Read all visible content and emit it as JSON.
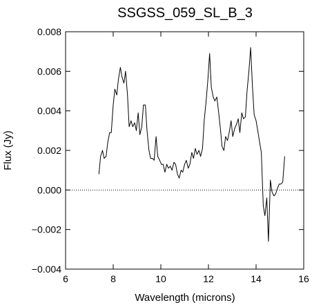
{
  "chart_data": {
    "type": "line",
    "title": "SSGSS_059_SL_B_3",
    "xlabel": "Wavelength (microns)",
    "ylabel": "Flux (Jy)",
    "xlim": [
      6,
      16
    ],
    "ylim": [
      -0.004,
      0.008
    ],
    "x_ticks": [
      6,
      8,
      10,
      12,
      14,
      16
    ],
    "x_tick_labels": [
      "6",
      "8",
      "10",
      "12",
      "14",
      "16"
    ],
    "y_ticks": [
      -0.004,
      -0.002,
      0.0,
      0.002,
      0.004,
      0.006,
      0.008
    ],
    "y_tick_labels": [
      "−0.004",
      "−0.002",
      "0.000",
      "0.002",
      "0.004",
      "0.006",
      "0.008"
    ],
    "reference_line": {
      "y": 0.0,
      "style": "dotted"
    },
    "grid": false,
    "legend": "none",
    "line_color": "#000000",
    "series": [
      {
        "x": [
          7.4,
          7.47,
          7.55,
          7.62,
          7.7,
          7.77,
          7.85,
          7.92,
          8.0,
          8.07,
          8.15,
          8.22,
          8.3,
          8.37,
          8.45,
          8.52,
          8.6,
          8.67,
          8.75,
          8.82,
          8.9,
          8.97,
          9.05,
          9.12,
          9.2,
          9.27,
          9.35,
          9.42,
          9.5,
          9.57,
          9.65,
          9.72,
          9.8,
          9.87,
          9.95,
          10.02,
          10.1,
          10.17,
          10.25,
          10.32,
          10.4,
          10.47,
          10.55,
          10.62,
          10.7,
          10.77,
          10.85,
          10.92,
          11.0,
          11.07,
          11.15,
          11.22,
          11.3,
          11.37,
          11.45,
          11.52,
          11.6,
          11.67,
          11.75,
          11.82,
          11.9,
          11.97,
          12.05,
          12.12,
          12.2,
          12.27,
          12.35,
          12.42,
          12.5,
          12.57,
          12.65,
          12.72,
          12.8,
          12.87,
          12.95,
          13.02,
          13.1,
          13.17,
          13.25,
          13.32,
          13.4,
          13.47,
          13.55,
          13.62,
          13.7,
          13.77,
          13.85,
          13.92,
          14.0,
          14.07,
          14.15,
          14.22,
          14.3,
          14.37,
          14.45,
          14.52,
          14.6,
          14.67,
          14.75,
          14.82,
          14.9,
          14.97,
          15.05,
          15.12,
          15.2
        ],
        "y": [
          0.0008,
          0.0017,
          0.002,
          0.0016,
          0.0017,
          0.0024,
          0.0029,
          0.0029,
          0.0043,
          0.0051,
          0.0048,
          0.0056,
          0.0062,
          0.0057,
          0.0054,
          0.006,
          0.0048,
          0.0032,
          0.0035,
          0.0032,
          0.0034,
          0.003,
          0.0039,
          0.0028,
          0.0032,
          0.0043,
          0.0043,
          0.003,
          0.002,
          0.0016,
          0.0016,
          0.0015,
          0.0027,
          0.0017,
          0.0015,
          0.0013,
          0.0013,
          0.0009,
          0.0013,
          0.0011,
          0.0012,
          0.001,
          0.0014,
          0.0013,
          0.0008,
          0.0006,
          0.001,
          0.0009,
          0.0013,
          0.0015,
          0.0011,
          0.0013,
          0.0019,
          0.0016,
          0.0021,
          0.0018,
          0.002,
          0.0017,
          0.0021,
          0.0035,
          0.0045,
          0.0055,
          0.0069,
          0.0052,
          0.0047,
          0.0045,
          0.0047,
          0.004,
          0.0031,
          0.0022,
          0.002,
          0.0027,
          0.0025,
          0.0029,
          0.0035,
          0.0027,
          0.0031,
          0.0033,
          0.0036,
          0.0029,
          0.0039,
          0.0036,
          0.0037,
          0.005,
          0.006,
          0.0072,
          0.0052,
          0.0038,
          0.0035,
          0.003,
          0.0024,
          0.0019,
          -0.0008,
          -0.0013,
          -0.0004,
          -0.0026,
          0.0005,
          -0.0001,
          -0.0003,
          -0.0002,
          0.0001,
          0.0003,
          0.0003,
          0.0004,
          0.0017
        ]
      }
    ]
  }
}
